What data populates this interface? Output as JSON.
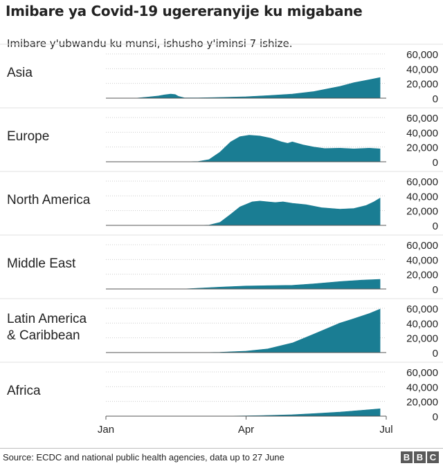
{
  "title": "Imibare ya Covid-19 ugereranyije ku migabane",
  "subtitle": "Imibare y'ubwandu ku munsi, ishusho y'iminsi 7 ishize.",
  "source": "Source: ECDC and national public health agencies, data up to 27 June",
  "logo": [
    "B",
    "B",
    "C"
  ],
  "colors": {
    "area": "#1a7d93",
    "grid": "#cccccc",
    "baseline": "#555555",
    "text": "#222222"
  },
  "chart_data": {
    "type": "area",
    "x_domain": [
      "2020-01-01",
      "2020-07-01"
    ],
    "x_ticks": [
      {
        "date": "2020-01-01",
        "label": "Jan"
      },
      {
        "date": "2020-04-01",
        "label": "Apr"
      },
      {
        "date": "2020-07-01",
        "label": "Jul"
      }
    ],
    "ylim": [
      0,
      60000
    ],
    "y_ticks": [
      0,
      20000,
      40000,
      60000
    ],
    "y_tick_labels": [
      "0",
      "20,000",
      "40,000",
      "60,000"
    ],
    "grid": true,
    "panels": [
      {
        "label_lines": [
          "Asia"
        ],
        "points": [
          [
            "2020-01-01",
            0
          ],
          [
            "2020-01-20",
            0
          ],
          [
            "2020-01-28",
            1500
          ],
          [
            "2020-02-04",
            3000
          ],
          [
            "2020-02-08",
            4500
          ],
          [
            "2020-02-12",
            5500
          ],
          [
            "2020-02-15",
            5000
          ],
          [
            "2020-02-17",
            2500
          ],
          [
            "2020-02-21",
            500
          ],
          [
            "2020-03-01",
            500
          ],
          [
            "2020-03-15",
            1000
          ],
          [
            "2020-04-01",
            2000
          ],
          [
            "2020-04-15",
            3500
          ],
          [
            "2020-05-01",
            5500
          ],
          [
            "2020-05-15",
            9000
          ],
          [
            "2020-06-01",
            16000
          ],
          [
            "2020-06-10",
            21000
          ],
          [
            "2020-06-20",
            25000
          ],
          [
            "2020-06-27",
            28000
          ]
        ]
      },
      {
        "label_lines": [
          "Europe"
        ],
        "points": [
          [
            "2020-01-01",
            0
          ],
          [
            "2020-02-20",
            0
          ],
          [
            "2020-03-01",
            500
          ],
          [
            "2020-03-08",
            3000
          ],
          [
            "2020-03-15",
            13000
          ],
          [
            "2020-03-22",
            27000
          ],
          [
            "2020-03-28",
            34000
          ],
          [
            "2020-04-03",
            36000
          ],
          [
            "2020-04-10",
            35000
          ],
          [
            "2020-04-17",
            32000
          ],
          [
            "2020-04-24",
            27000
          ],
          [
            "2020-04-28",
            25000
          ],
          [
            "2020-05-01",
            27000
          ],
          [
            "2020-05-08",
            23000
          ],
          [
            "2020-05-15",
            20000
          ],
          [
            "2020-05-22",
            18000
          ],
          [
            "2020-06-01",
            18500
          ],
          [
            "2020-06-10",
            17500
          ],
          [
            "2020-06-20",
            18500
          ],
          [
            "2020-06-27",
            17500
          ]
        ]
      },
      {
        "label_lines": [
          "North America"
        ],
        "points": [
          [
            "2020-01-01",
            0
          ],
          [
            "2020-03-01",
            0
          ],
          [
            "2020-03-08",
            500
          ],
          [
            "2020-03-15",
            4000
          ],
          [
            "2020-03-22",
            15000
          ],
          [
            "2020-03-28",
            25000
          ],
          [
            "2020-04-05",
            32000
          ],
          [
            "2020-04-10",
            33000
          ],
          [
            "2020-04-15",
            32000
          ],
          [
            "2020-04-20",
            31000
          ],
          [
            "2020-04-25",
            32000
          ],
          [
            "2020-05-01",
            30000
          ],
          [
            "2020-05-10",
            28000
          ],
          [
            "2020-05-20",
            24000
          ],
          [
            "2020-06-01",
            22000
          ],
          [
            "2020-06-10",
            23000
          ],
          [
            "2020-06-18",
            27000
          ],
          [
            "2020-06-23",
            32000
          ],
          [
            "2020-06-27",
            37000
          ]
        ]
      },
      {
        "label_lines": [
          "Middle East"
        ],
        "points": [
          [
            "2020-01-01",
            0
          ],
          [
            "2020-02-20",
            0
          ],
          [
            "2020-03-01",
            1000
          ],
          [
            "2020-03-15",
            2500
          ],
          [
            "2020-04-01",
            4000
          ],
          [
            "2020-04-15",
            4500
          ],
          [
            "2020-05-01",
            5000
          ],
          [
            "2020-05-15",
            7000
          ],
          [
            "2020-06-01",
            10000
          ],
          [
            "2020-06-15",
            12000
          ],
          [
            "2020-06-27",
            13000
          ]
        ]
      },
      {
        "label_lines": [
          "Latin America",
          "& Caribbean"
        ],
        "points": [
          [
            "2020-01-01",
            0
          ],
          [
            "2020-03-01",
            0
          ],
          [
            "2020-03-15",
            500
          ],
          [
            "2020-04-01",
            2000
          ],
          [
            "2020-04-15",
            5000
          ],
          [
            "2020-05-01",
            13000
          ],
          [
            "2020-05-15",
            25000
          ],
          [
            "2020-06-01",
            40000
          ],
          [
            "2020-06-10",
            46000
          ],
          [
            "2020-06-20",
            53000
          ],
          [
            "2020-06-27",
            59000
          ]
        ]
      },
      {
        "label_lines": [
          "Africa"
        ],
        "points": [
          [
            "2020-01-01",
            0
          ],
          [
            "2020-03-15",
            0
          ],
          [
            "2020-04-01",
            500
          ],
          [
            "2020-04-15",
            1000
          ],
          [
            "2020-05-01",
            2000
          ],
          [
            "2020-05-15",
            3500
          ],
          [
            "2020-06-01",
            5500
          ],
          [
            "2020-06-15",
            8000
          ],
          [
            "2020-06-27",
            10000
          ]
        ]
      }
    ]
  }
}
